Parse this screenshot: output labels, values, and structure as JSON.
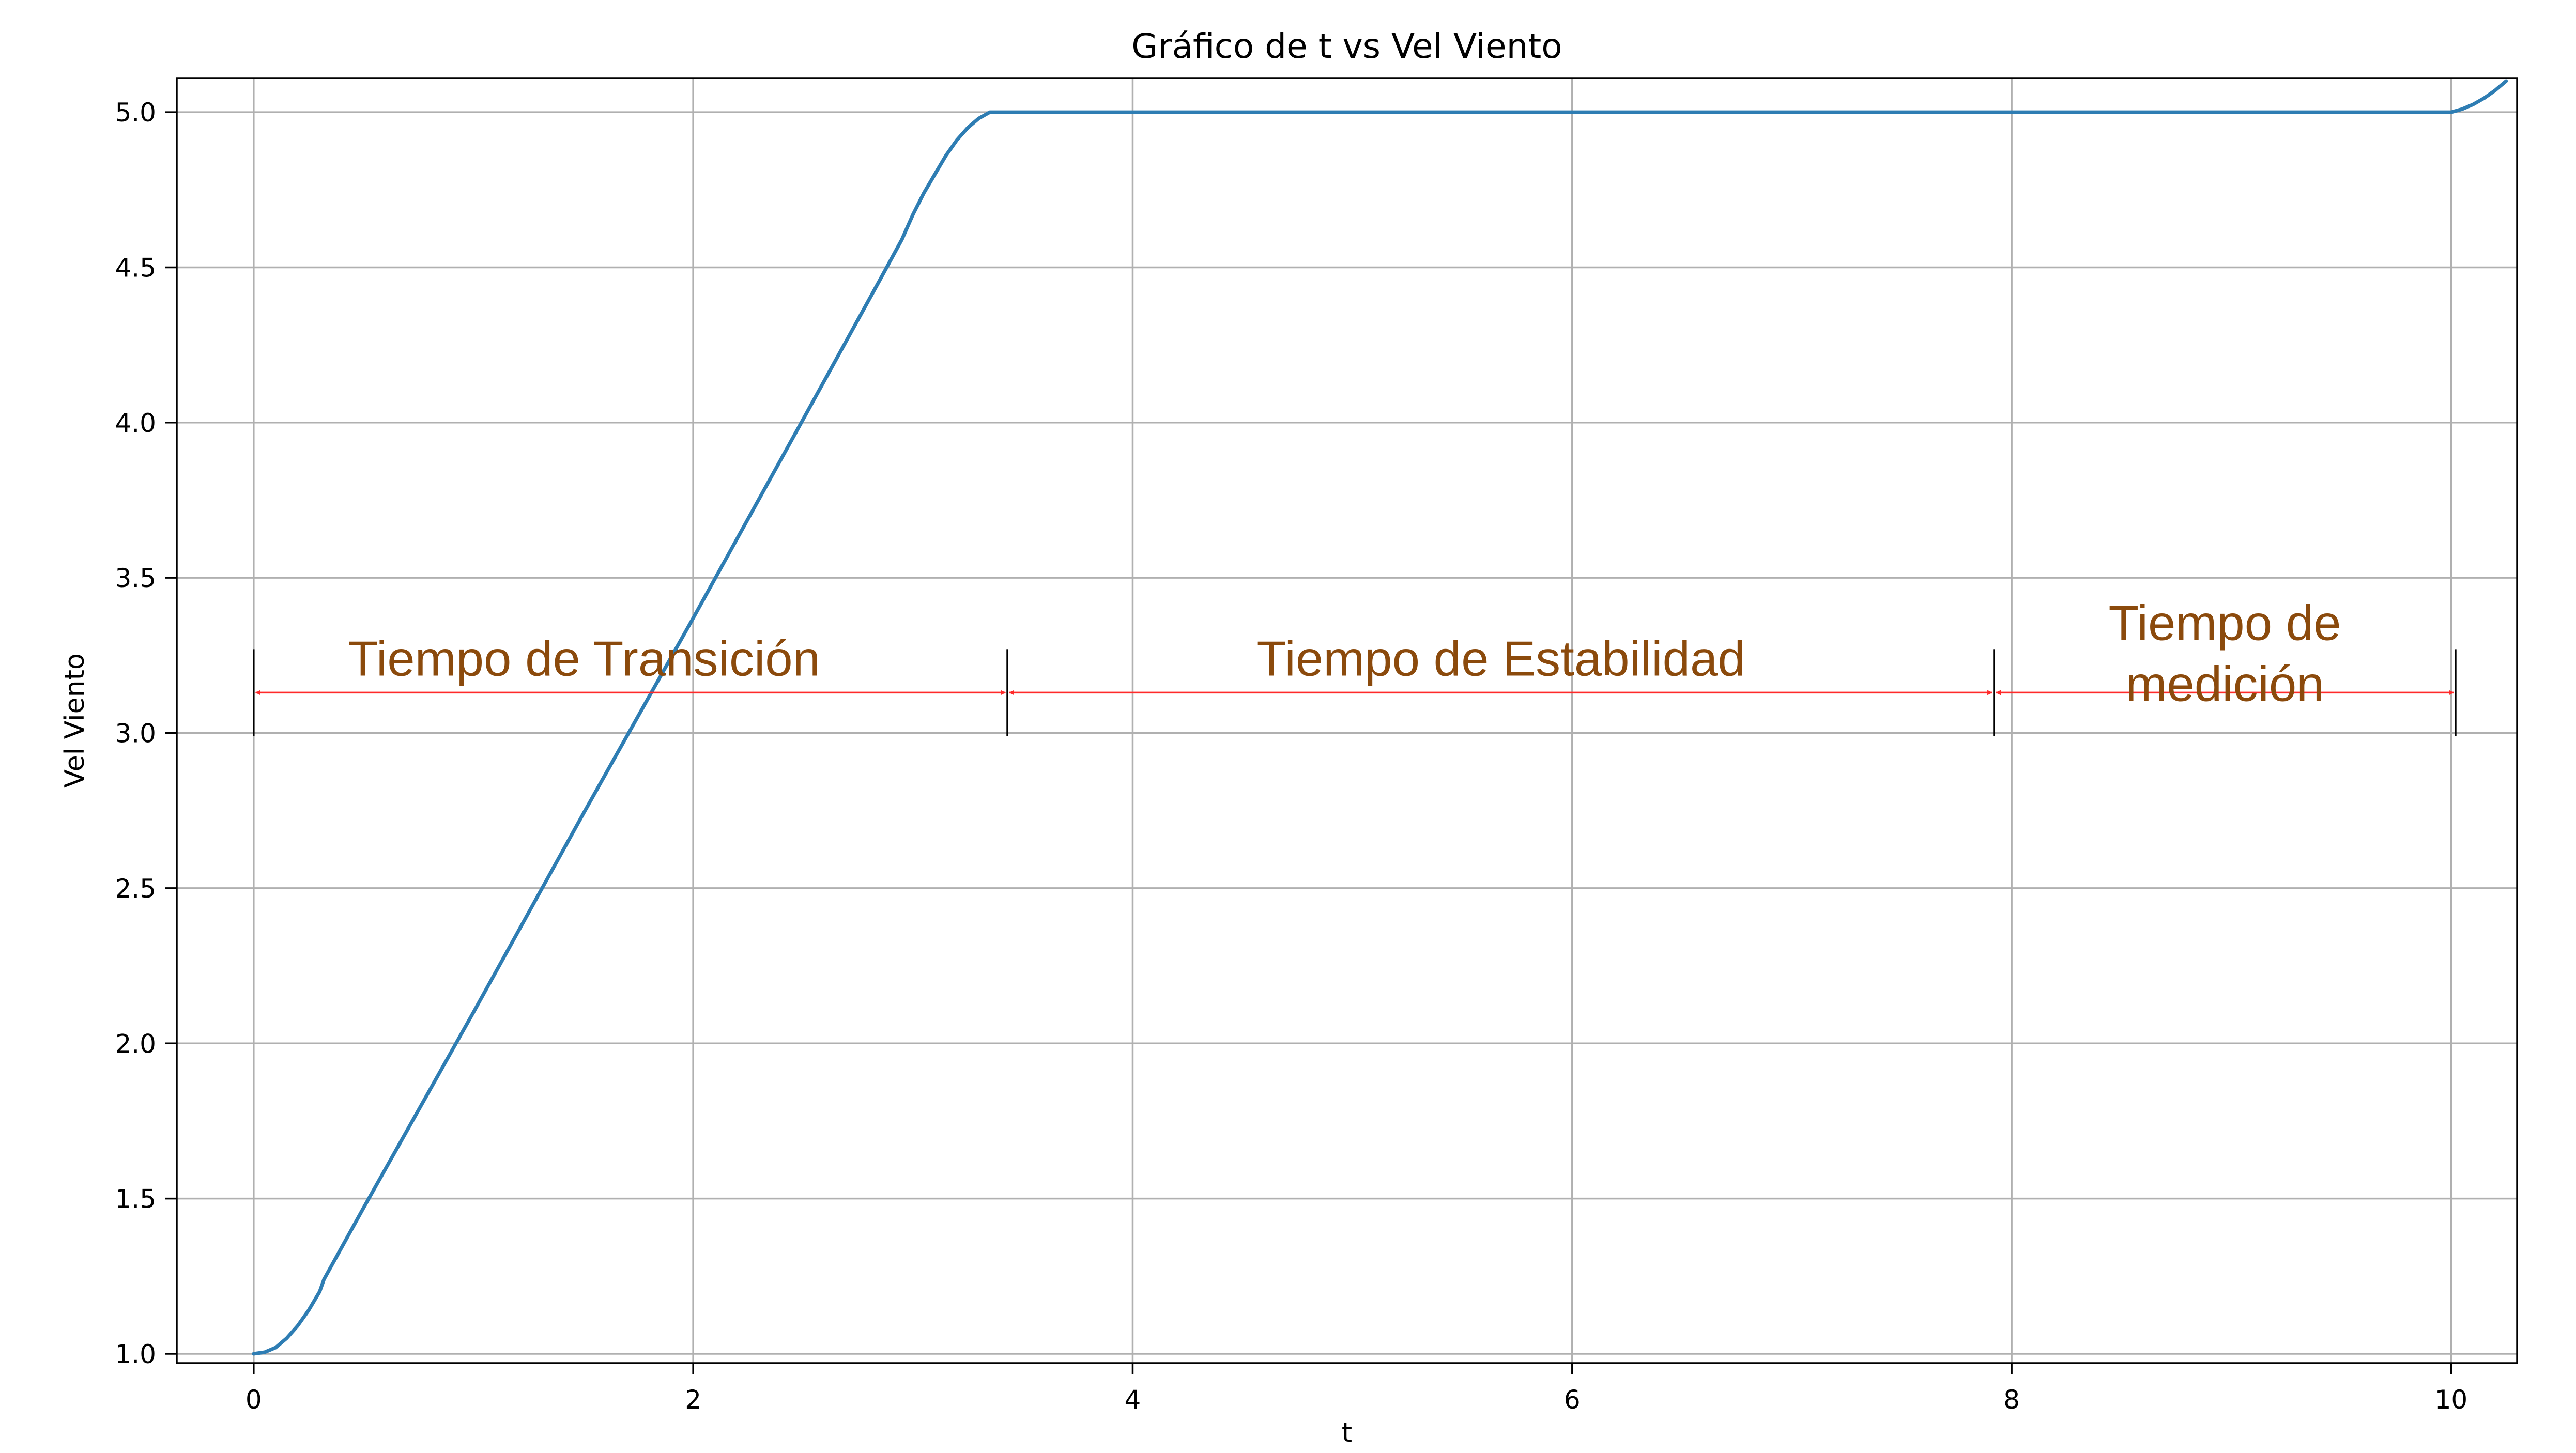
{
  "chart_data": {
    "type": "line",
    "title": "Gráfico de t vs Vel Viento",
    "xlabel": "t",
    "ylabel": "Vel Viento",
    "xlim": [
      -0.35,
      10.3
    ],
    "ylim": [
      0.97,
      5.11
    ],
    "xticks": [
      0,
      2,
      4,
      6,
      8,
      10
    ],
    "xtick_labels": [
      "0",
      "2",
      "4",
      "6",
      "8",
      "10"
    ],
    "yticks": [
      1.0,
      1.5,
      2.0,
      2.5,
      3.0,
      3.5,
      4.0,
      4.5,
      5.0
    ],
    "ytick_labels": [
      "1.0",
      "1.5",
      "2.0",
      "2.5",
      "3.0",
      "3.5",
      "4.0",
      "4.5",
      "5.0"
    ],
    "grid": true,
    "series": [
      {
        "name": "Vel Viento",
        "color": "#2e7db3",
        "x": [
          0,
          0.05,
          0.1,
          0.15,
          0.2,
          0.25,
          0.3,
          0.32,
          0.5,
          1.0,
          1.5,
          2.0,
          2.5,
          2.85,
          2.95,
          3.0,
          3.05,
          3.1,
          3.15,
          3.2,
          3.25,
          3.3,
          3.35,
          4,
          5,
          6,
          7,
          8,
          9,
          10,
          10.05,
          10.1,
          10.15,
          10.2,
          10.25
        ],
        "values": [
          1.0,
          1.005,
          1.02,
          1.05,
          1.09,
          1.14,
          1.2,
          1.24,
          1.47,
          2.1,
          2.74,
          3.37,
          4.01,
          4.46,
          4.59,
          4.67,
          4.74,
          4.8,
          4.86,
          4.91,
          4.95,
          4.98,
          5.0,
          5.0,
          5.0,
          5.0,
          5.0,
          5.0,
          5.0,
          5.0,
          5.01,
          5.025,
          5.045,
          5.07,
          5.1
        ]
      }
    ],
    "annotations": [
      {
        "label": "Tiempo de Transición",
        "x_start": 0,
        "x_end": 3.43,
        "y": 3.13,
        "bracket_y": [
          2.99,
          3.27
        ],
        "color": "#ff2a2a"
      },
      {
        "label": "Tiempo de Estabilidad",
        "x_start": 3.43,
        "x_end": 7.92,
        "y": 3.13,
        "bracket_y": [
          2.99,
          3.27
        ],
        "color": "#ff2a2a"
      },
      {
        "label": "Tiempo de medición",
        "label_lines": [
          "Tiempo de",
          "medición"
        ],
        "x_start": 7.92,
        "x_end": 10.02,
        "y": 3.13,
        "bracket_y": [
          2.99,
          3.27
        ],
        "color": "#ff2a2a"
      }
    ]
  }
}
